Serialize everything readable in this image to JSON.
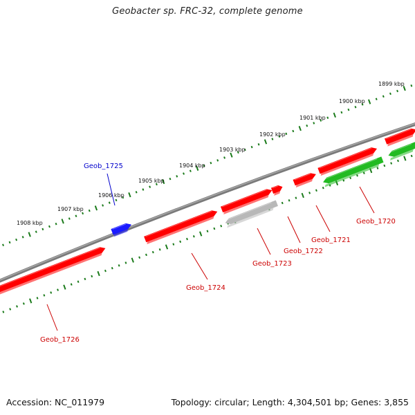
{
  "header": {
    "title": "Geobacter sp. FRC-32, complete genome"
  },
  "footer": {
    "accession": "Accession: NC_011979",
    "summary": "Topology: circular; Length: 4,304,501 bp; Genes: 3,855"
  },
  "scale": {
    "tick_labels": [
      "1899 kbp",
      "1900 kbp",
      "1901 kbp",
      "1902 kbp",
      "1903 kbp",
      "1904 kbp",
      "1905 kbp",
      "1906 kbp",
      "1907 kbp",
      "1908 kbp"
    ]
  },
  "colors": {
    "forward_gene": "#ff0000",
    "reverse_gene": "#ff0000",
    "rna_gene": "#22bb22",
    "pseudo_gene": "#b8b8b8",
    "blue_gene": "#1a1aff",
    "backbone": "#808080",
    "tick": "#1a7a1a",
    "red_label": "#cc0000",
    "blue_label": "#0000cc"
  },
  "genes": [
    {
      "id": "Geob_1720",
      "label": "Geob_1720",
      "color": "#22bb22",
      "strand": "-"
    },
    {
      "id": "Geob_1721",
      "label": "Geob_1721",
      "color": "#ff0000",
      "strand": "+"
    },
    {
      "id": "Geob_1722",
      "label": "Geob_1722",
      "color": "#ff0000",
      "strand": "+"
    },
    {
      "id": "Geob_1723",
      "label": "Geob_1723",
      "color": "#b8b8b8",
      "strand": "-"
    },
    {
      "id": "Geob_1724",
      "label": "Geob_1724",
      "color": "#ff0000",
      "strand": "+"
    },
    {
      "id": "Geob_1725",
      "label": "Geob_1725",
      "color": "#1a1aff",
      "strand": "+"
    },
    {
      "id": "Geob_1726",
      "label": "Geob_1726",
      "color": "#ff0000",
      "strand": "+"
    }
  ]
}
